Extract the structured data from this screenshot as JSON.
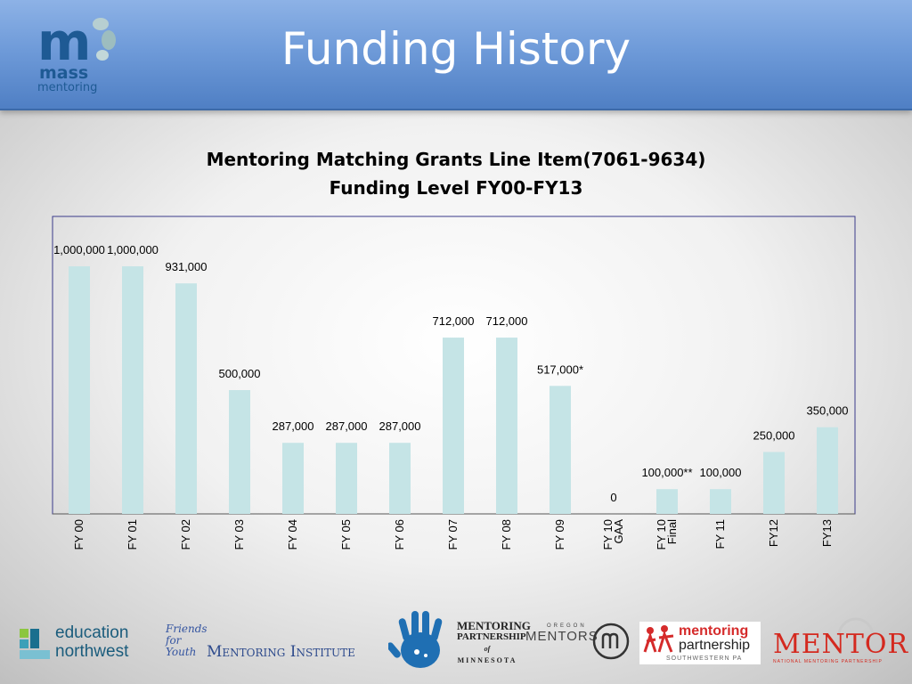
{
  "slide": {
    "title": "Funding History"
  },
  "brand": {
    "logo_line1": "mass",
    "logo_line2": "mentoring",
    "header_color": "#6f9bd9"
  },
  "chart_data": {
    "type": "bar",
    "title_line1": "Mentoring Matching Grants Line Item(7061-9634)",
    "title_line2": "Funding Level FY00-FY13",
    "categories": [
      "FY 00",
      "FY 01",
      "FY 02",
      "FY 03",
      "FY 04",
      "FY 05",
      "FY 06",
      "FY 07",
      "FY 08",
      "FY 09",
      "FY 10 GAA",
      "FY 10 Final",
      "FY 11",
      "FY12",
      "FY13"
    ],
    "category_lines": [
      [
        "FY 00"
      ],
      [
        "FY 01"
      ],
      [
        "FY 02"
      ],
      [
        "FY 03"
      ],
      [
        "FY 04"
      ],
      [
        "FY 05"
      ],
      [
        "FY 06"
      ],
      [
        "FY 07"
      ],
      [
        "FY 08"
      ],
      [
        "FY 09"
      ],
      [
        "FY 10",
        "GAA"
      ],
      [
        "FY 10",
        "Final"
      ],
      [
        "FY 11"
      ],
      [
        "FY12"
      ],
      [
        "FY13"
      ]
    ],
    "values": [
      1000000,
      1000000,
      931000,
      500000,
      287000,
      287000,
      287000,
      712000,
      712000,
      517000,
      0,
      100000,
      100000,
      250000,
      350000
    ],
    "data_labels": [
      "1,000,000",
      "1,000,000",
      "931,000",
      "500,000",
      "287,000",
      "287,000",
      "287,000",
      "712,000",
      "712,000",
      "517,000*",
      "0",
      "100,000**",
      "100,000",
      "250,000",
      "350,000"
    ],
    "xlabel": "",
    "ylabel": "",
    "ylim": [
      0,
      1000000
    ],
    "grid": false,
    "bar_color": "#c5e4e6",
    "border_color": "#3a3a8a"
  },
  "partners": {
    "education_northwest_line1": "education",
    "education_northwest_line2": "northwest",
    "friends_for_youth": "Friends for Youth",
    "mentoring_institute": "Mentoring Institute",
    "mentoring_partnership_mn_line1": "MENTORING",
    "mentoring_partnership_mn_line2": "PARTNERSHIP",
    "mentoring_partnership_mn_line3": "of",
    "mentoring_partnership_mn_line4": "MINNESOTA",
    "oregon_mentors_small": "OREGON",
    "oregon_mentors": "MENTORS",
    "mpsw_line1": "mentoring",
    "mpsw_line2": "partnership",
    "mpsw_line3": "SOUTHWESTERN PA",
    "mentor": "MENTOR",
    "mentor_sub": "NATIONAL MENTORING PARTNERSHIP"
  }
}
